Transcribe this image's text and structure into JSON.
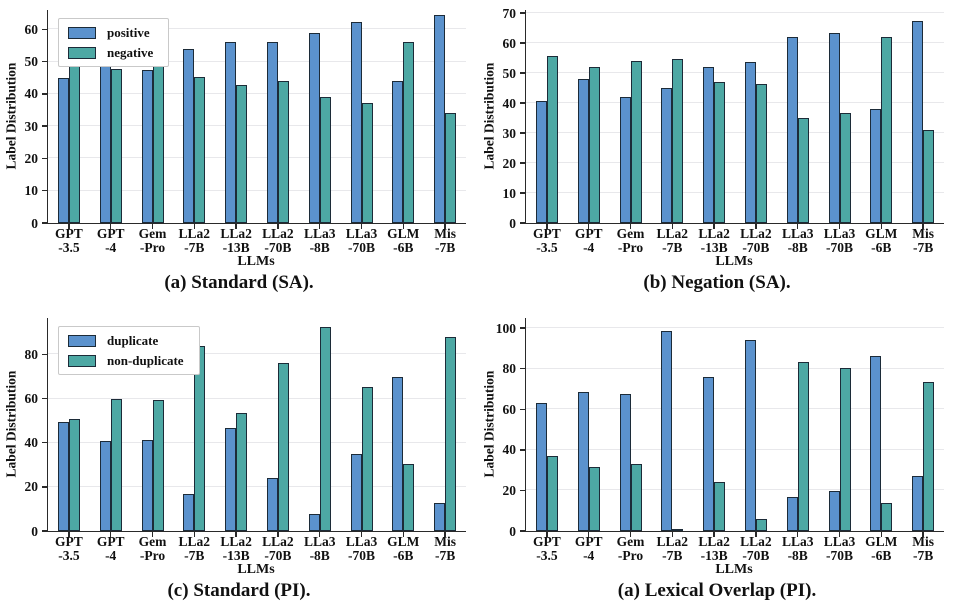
{
  "figure": {
    "background": "#ffffff"
  },
  "colors": {
    "series_blue": "#5b92cd",
    "series_teal": "#4da8a4",
    "bar_edge": "#1c2b38",
    "grid": "#e8e8eb",
    "axis": "#2a2a2a",
    "legend_border": "#c9c9c9"
  },
  "chart_data": [
    {
      "type": "bar",
      "caption": "(a) Standard (SA).",
      "ylabel": "Label Distribution",
      "xlabel": "LLMs",
      "categories": [
        "GPT\n-3.5",
        "GPT\n-4",
        "Gem\n-Pro",
        "LLa2\n-7B",
        "LLa2\n-13B",
        "LLa2\n-70B",
        "LLa3\n-8B",
        "LLa3\n-70B",
        "GLM\n-6B",
        "Mis\n-7B"
      ],
      "yticks": [
        0,
        10,
        20,
        30,
        40,
        50,
        60
      ],
      "ylim": [
        0,
        66
      ],
      "grid": true,
      "legend_visible": true,
      "legend_position": "top-left",
      "series": [
        {
          "name": "positive",
          "color": "#5b92cd",
          "values": [
            45.0,
            52.2,
            47.3,
            53.8,
            56.2,
            56.1,
            59.0,
            62.2,
            43.9,
            64.5
          ]
        },
        {
          "name": "negative",
          "color": "#4da8a4",
          "values": [
            53.0,
            47.8,
            50.8,
            45.3,
            42.7,
            43.9,
            39.0,
            37.3,
            56.2,
            34.0
          ]
        }
      ]
    },
    {
      "type": "bar",
      "caption": "(b) Negation (SA).",
      "ylabel": "Label Distribution",
      "xlabel": "LLMs",
      "categories": [
        "GPT\n-3.5",
        "GPT\n-4",
        "Gem\n-Pro",
        "LLa2\n-7B",
        "LLa2\n-13B",
        "LLa2\n-70B",
        "LLa3\n-8B",
        "LLa3\n-70B",
        "GLM\n-6B",
        "Mis\n-7B"
      ],
      "yticks": [
        0,
        10,
        20,
        30,
        40,
        50,
        60,
        70
      ],
      "ylim": [
        0,
        71
      ],
      "grid": true,
      "legend_visible": false,
      "series": [
        {
          "name": "positive",
          "color": "#5b92cd",
          "values": [
            40.7,
            48.0,
            42.0,
            45.0,
            52.0,
            53.6,
            62.0,
            63.5,
            38.0,
            67.5
          ]
        },
        {
          "name": "negative",
          "color": "#4da8a4",
          "values": [
            55.6,
            52.0,
            54.0,
            54.6,
            46.9,
            46.4,
            35.0,
            36.8,
            62.1,
            31.0
          ]
        }
      ]
    },
    {
      "type": "bar",
      "caption": "(c) Standard (PI).",
      "ylabel": "Label Distribution",
      "xlabel": "LLMs",
      "categories": [
        "GPT\n-3.5",
        "GPT\n-4",
        "Gem\n-Pro",
        "LLa2\n-7B",
        "LLa2\n-13B",
        "LLa2\n-70B",
        "LLa3\n-8B",
        "LLa3\n-70B",
        "GLM\n-6B",
        "Mis\n-7B"
      ],
      "yticks": [
        0,
        20,
        40,
        60,
        80
      ],
      "ylim": [
        0,
        96.5
      ],
      "grid": true,
      "legend_visible": true,
      "legend_position": "top-left",
      "series": [
        {
          "name": "duplicate",
          "color": "#5b92cd",
          "values": [
            49.4,
            40.6,
            41.2,
            16.6,
            46.6,
            23.9,
            7.6,
            34.9,
            70.0,
            12.6
          ]
        },
        {
          "name": "non-duplicate",
          "color": "#4da8a4",
          "values": [
            50.9,
            59.6,
            59.2,
            83.6,
            53.6,
            76.1,
            92.6,
            65.4,
            30.2,
            87.9
          ]
        }
      ]
    },
    {
      "type": "bar",
      "caption": "(a) Lexical Overlap (PI).",
      "ylabel": "Label Distribution",
      "xlabel": "LLMs",
      "categories": [
        "GPT\n-3.5",
        "GPT\n-4",
        "Gem\n-Pro",
        "LLa2\n-7B",
        "LLa2\n-13B",
        "LLa2\n-70B",
        "LLa3\n-8B",
        "LLa3\n-70B",
        "GLM\n-6B",
        "Mis\n-7B"
      ],
      "yticks": [
        0,
        20,
        40,
        60,
        80,
        100
      ],
      "ylim": [
        0,
        105
      ],
      "grid": true,
      "legend_visible": false,
      "series": [
        {
          "name": "duplicate",
          "color": "#5b92cd",
          "values": [
            63.0,
            68.7,
            67.4,
            98.6,
            76.0,
            94.2,
            16.9,
            19.8,
            86.4,
            27.2
          ]
        },
        {
          "name": "non-duplicate",
          "color": "#4da8a4",
          "values": [
            37.0,
            31.4,
            33.1,
            1.2,
            24.4,
            5.7,
            83.1,
            80.6,
            13.9,
            73.4
          ]
        }
      ]
    }
  ]
}
